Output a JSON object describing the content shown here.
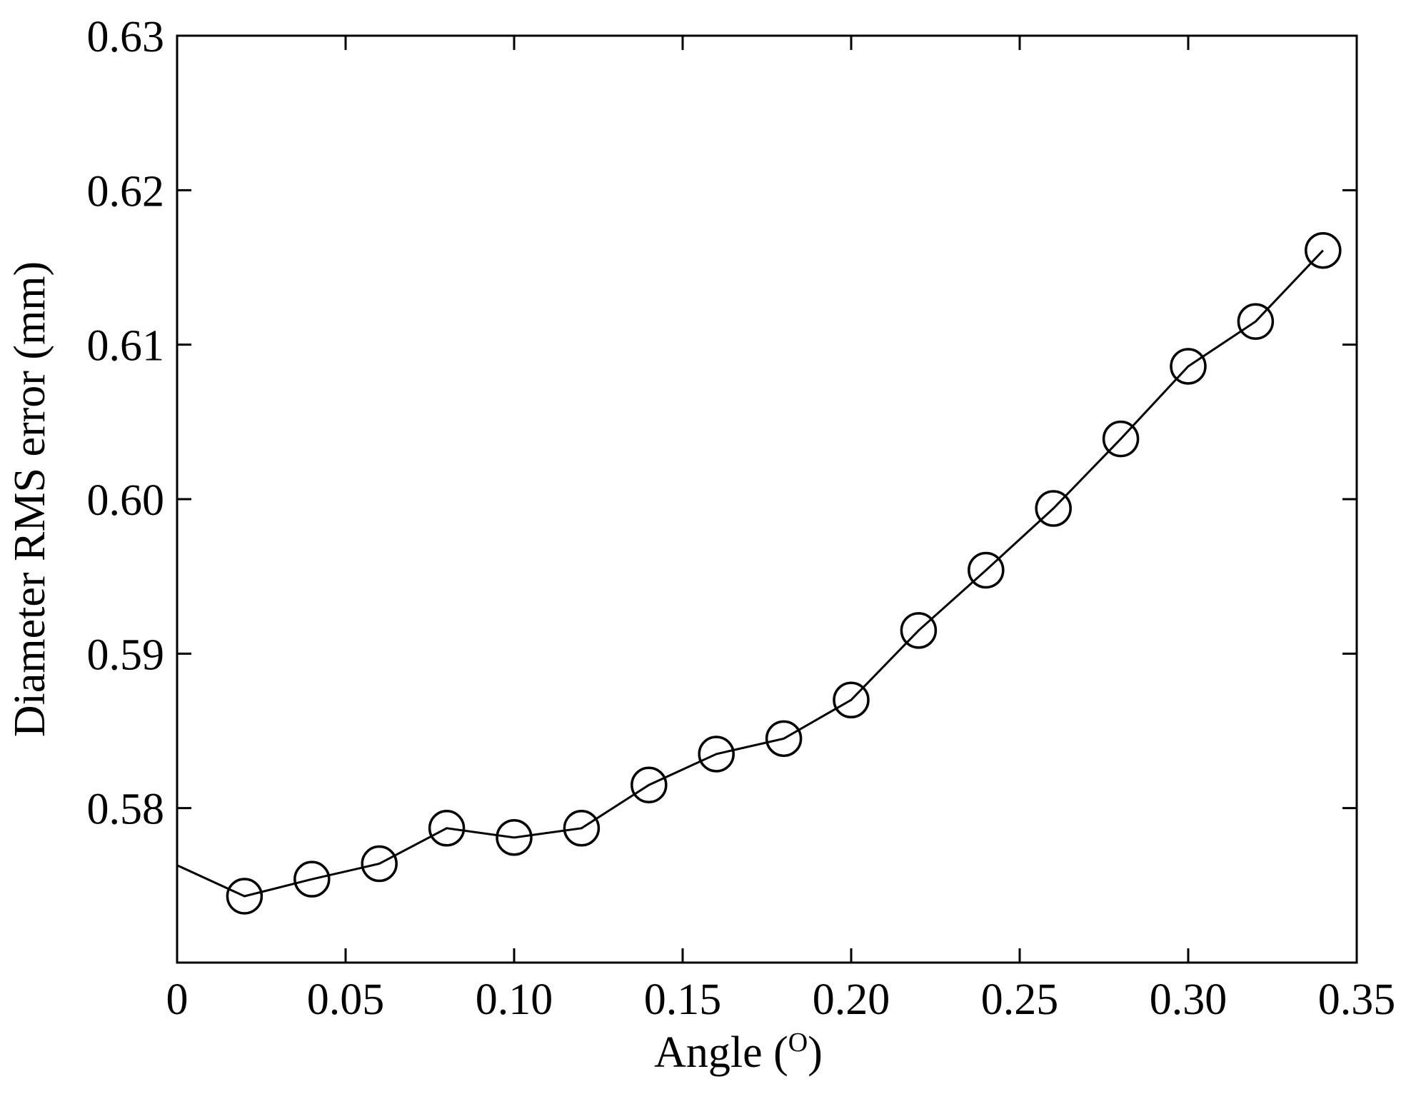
{
  "chart_data": {
    "type": "line",
    "title": "",
    "xlabel_main": "Angle (",
    "xlabel_unit": "O",
    "xlabel_close": ")",
    "ylabel": "Diameter RMS error (mm)",
    "xlim": [
      0,
      0.35
    ],
    "ylim": [
      0.57,
      0.63
    ],
    "grid": false,
    "x_ticks": [
      "0",
      "0.05",
      "0.10",
      "0.15",
      "0.20",
      "0.25",
      "0.30",
      "0.35"
    ],
    "y_ticks": [
      "0.58",
      "0.59",
      "0.60",
      "0.61",
      "0.62",
      "0.63"
    ],
    "marker": "open-circle",
    "line_start": {
      "x": 0,
      "y": 0.5763
    },
    "series": [
      {
        "x": [
          0.02,
          0.04,
          0.06,
          0.08,
          0.1,
          0.12,
          0.14,
          0.16,
          0.18,
          0.2,
          0.22,
          0.24,
          0.26,
          0.28,
          0.3,
          0.32,
          0.34
        ],
        "y": [
          0.5743,
          0.5754,
          0.5764,
          0.5787,
          0.5781,
          0.5787,
          0.5815,
          0.5835,
          0.5845,
          0.587,
          0.5915,
          0.5954,
          0.5994,
          0.6039,
          0.6086,
          0.6115,
          0.6161
        ]
      }
    ]
  }
}
